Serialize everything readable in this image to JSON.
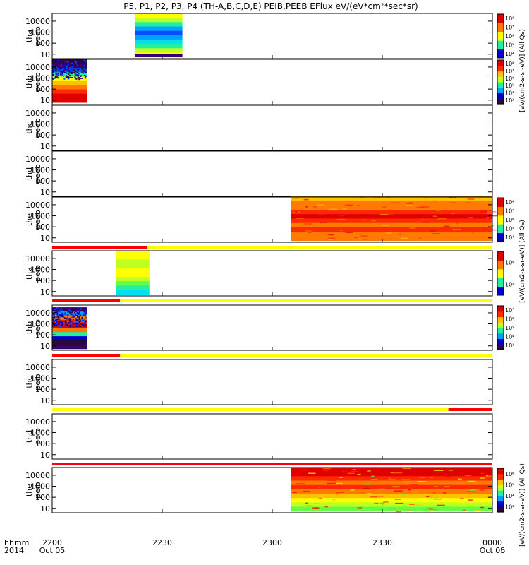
{
  "title": "P5, P1, P2, P3, P4 (TH-A,B,C,D,E) PEIB,PEEB EFlux eV/(eV*cm²*sec*sr)",
  "colors": {
    "jet": [
      "#2a0a3c",
      "#3a0070",
      "#0000c8",
      "#0050ff",
      "#00a0ff",
      "#00e0f0",
      "#20f0a0",
      "#60ff40",
      "#c0ff20",
      "#ffff00",
      "#ffc000",
      "#ff7a00",
      "#ff2a00",
      "#e00000"
    ],
    "quality_red": "#ff0000",
    "quality_yellow": "#ffff00"
  },
  "chart_data": {
    "type": "heatmap",
    "x_axis": {
      "row_label_1": "hhmm",
      "row_label_2": "2014",
      "ticks": [
        {
          "t": 0,
          "label": "2200",
          "sub": "Oct 05"
        },
        {
          "t": 30,
          "label": "2230",
          "sub": ""
        },
        {
          "t": 60,
          "label": "2300",
          "sub": ""
        },
        {
          "t": 90,
          "label": "2330",
          "sub": ""
        },
        {
          "t": 120,
          "label": "0000",
          "sub": "Oct 06"
        }
      ],
      "range_minutes": [
        0,
        120
      ]
    },
    "y_ticks": [
      "10",
      "100",
      "1000",
      "10000"
    ],
    "y_log_range": [
      0.6,
      4.7
    ],
    "panels": [
      {
        "name": "peeb-a",
        "label": [
          "tha",
          "peeb"
        ],
        "flags": null,
        "blocks": [
          {
            "t0": 22.5,
            "t1": 35.5,
            "lo": 0.75,
            "hi": 4.7,
            "pal": [
              9,
              8,
              6,
              5,
              4,
              3,
              4,
              6,
              8,
              9
            ],
            "lowband": 1
          }
        ],
        "colorbar": {
          "levels": [
            2,
            6,
            9,
            11,
            13
          ],
          "ticks": [
            "10⁴",
            "10⁵",
            "10⁶",
            "10⁷",
            "10⁸"
          ],
          "label": "eV/(cm2-s-sr-eV) (All Qs)"
        }
      },
      {
        "name": "peeb-b",
        "label": [
          "thb",
          "peeb"
        ],
        "flags": null,
        "blocks": [
          {
            "t0": 0,
            "t1": 9.5,
            "lo": 0.8,
            "hi": 4.7,
            "pal": [
              13,
              13,
              12,
              11,
              10,
              9,
              6,
              3,
              1,
              0
            ],
            "speckle": true
          }
        ],
        "colorbar": {
          "levels": [
            0,
            2,
            4,
            6,
            8,
            10,
            12,
            13
          ],
          "ticks": [
            "10³",
            "10⁴",
            "10⁵",
            "10⁶",
            "10⁷",
            "10⁸"
          ],
          "label": "[eV/(cm2-s-sr-eV)]"
        }
      },
      {
        "name": "peeb-c",
        "label": [
          "thc",
          "peeb"
        ],
        "flags": null,
        "blocks": [],
        "colorbar": null
      },
      {
        "name": "peeb-d",
        "label": [
          "thd",
          "peeb"
        ],
        "flags": null,
        "blocks": [],
        "colorbar": null
      },
      {
        "name": "peeb-e",
        "label": [
          "the",
          "peeb"
        ],
        "flags": [
          [
            0,
            26,
            "red"
          ],
          [
            26,
            120,
            "yellow"
          ]
        ],
        "blocks": [
          {
            "t0": 65,
            "t1": 120,
            "lo": 0.75,
            "hi": 4.75,
            "pal": [
              11,
              11,
              12,
              11,
              12,
              13,
              12,
              11,
              11,
              10
            ]
          }
        ],
        "colorbar": {
          "levels": [
            2,
            6,
            9,
            11,
            13
          ],
          "ticks": [
            "10⁴",
            "10⁵",
            "10⁶",
            "10⁷",
            "10⁸"
          ],
          "label": "eV/(cm2-s-sr-eV) (All Qs)"
        }
      },
      {
        "name": "peib-a",
        "label": [
          "tha",
          "peib"
        ],
        "flags": [
          [
            0,
            18.5,
            "red"
          ],
          [
            18.5,
            120,
            "yellow"
          ]
        ],
        "blocks": [
          {
            "t0": 17.5,
            "t1": 26.5,
            "lo": 0.75,
            "hi": 4.7,
            "pal": [
              5,
              6,
              7,
              8,
              9,
              9,
              8,
              8,
              9,
              9
            ]
          }
        ],
        "colorbar": {
          "levels": [
            2,
            6,
            9,
            11,
            13
          ],
          "ticks": [
            "10⁵",
            "10⁶"
          ],
          "label": "eV/(cm2-s-sr-eV) (All Qs)"
        }
      },
      {
        "name": "peib-b",
        "label": [
          "thb",
          "peib"
        ],
        "flags": [
          [
            0,
            18.5,
            "red"
          ],
          [
            18.5,
            120,
            "yellow"
          ]
        ],
        "blocks": [
          {
            "t0": 0,
            "t1": 9.5,
            "lo": 0.75,
            "hi": 4.5,
            "pal": [
              1,
              0,
              2,
              6,
              11,
              13,
              12,
              11,
              4,
              1
            ],
            "speckle": true
          }
        ],
        "colorbar": {
          "levels": [
            0,
            2,
            4,
            6,
            8,
            10,
            12,
            13
          ],
          "ticks": [
            "10³",
            "10⁴",
            "10⁵",
            "10⁶",
            "10⁷"
          ],
          "label": "eV/(cm2-s-sr-eV) (All Qs)"
        }
      },
      {
        "name": "peib-c",
        "label": [
          "thc",
          "peib"
        ],
        "flags": [
          [
            0,
            108,
            "yellow"
          ],
          [
            108,
            120,
            "red"
          ]
        ],
        "blocks": [],
        "colorbar": null
      },
      {
        "name": "peib-d",
        "label": [
          "thd",
          "peib"
        ],
        "flags": [
          [
            0,
            120,
            "red"
          ]
        ],
        "blocks": [],
        "colorbar": null
      },
      {
        "name": "peib-e",
        "label": [
          "the",
          "peib"
        ],
        "flags": null,
        "blocks": [
          {
            "t0": 65,
            "t1": 120,
            "lo": 0.75,
            "hi": 4.7,
            "pal": [
              7,
              8,
              9,
              10,
              11,
              12,
              11,
              12,
              13,
              13
            ]
          }
        ],
        "colorbar": {
          "levels": [
            0,
            2,
            4,
            6,
            8,
            10,
            12,
            13
          ],
          "ticks": [
            "10³",
            "10⁴",
            "10⁵",
            "10⁶"
          ],
          "label": "[eV/(cm2-s-sr-eV)] (All Qs)"
        }
      }
    ],
    "colorbar_titles": [
      "[eV/(cm2-s-sr-eV)] (All Qs)",
      "[eV/(cm2-s-sr-eV)] (All Qs)",
      "[eV/(cm2-s-sr-eV)] (All Qs)"
    ]
  }
}
